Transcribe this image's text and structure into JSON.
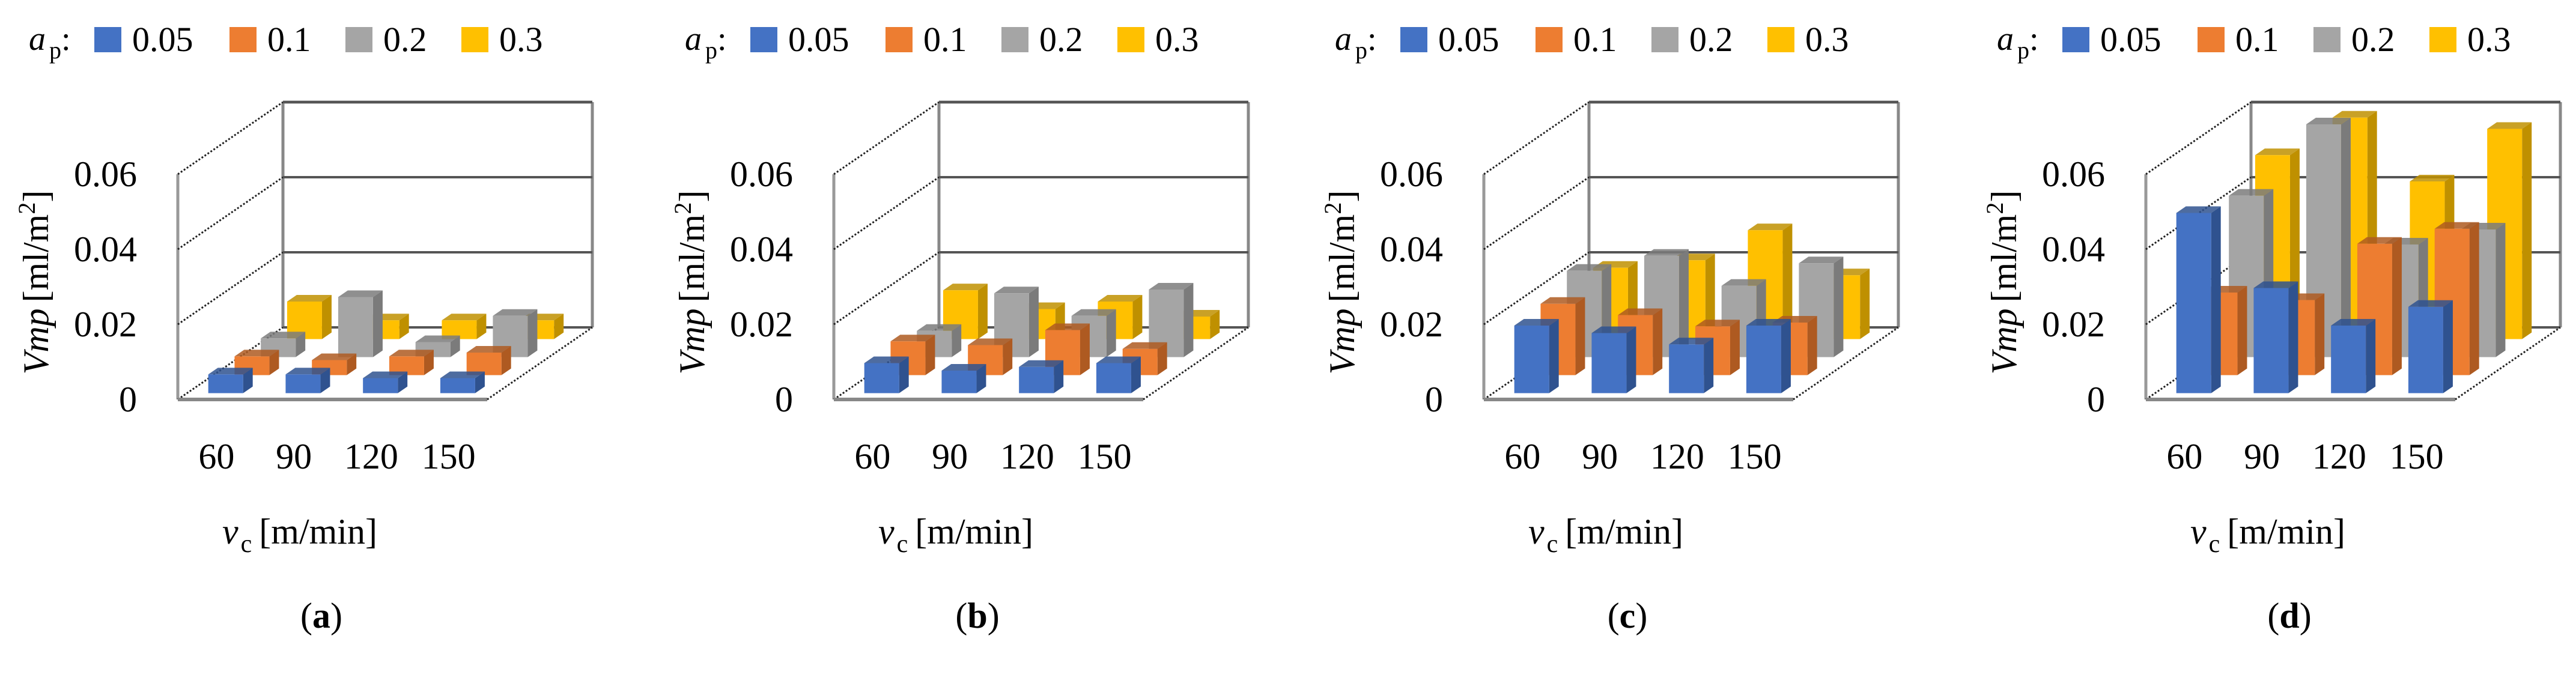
{
  "legend": {
    "symbol": "a",
    "subscript": "p",
    "colon": ":",
    "items": [
      "0.05",
      "0.1",
      "0.2",
      "0.3"
    ]
  },
  "colors": {
    "0.05": [
      "#4472C4",
      "#2F528F",
      "#5B86D4"
    ],
    "0.1": [
      "#ED7D31",
      "#AE5A21",
      "#F0955A"
    ],
    "0.2": [
      "#A5A5A5",
      "#7B7B7B",
      "#BDBDBD"
    ],
    "0.3": [
      "#FFC000",
      "#BF9000",
      "#FFD040"
    ]
  },
  "chart_data": [
    {
      "type": "bar",
      "subtype": "3d-clustered-depth",
      "caption": "a",
      "categories": [
        "60",
        "90",
        "120",
        "150"
      ],
      "xlabel": {
        "symbol": "v",
        "subscript": "c",
        "unit": "[m/min]"
      },
      "ylabel": {
        "symbol": "Vmp",
        "unit": "[ml/m",
        "sup": "2",
        "close": "]"
      },
      "yticks": [
        "0",
        "0.02",
        "0.04",
        "0.06"
      ],
      "ylim": [
        0,
        0.06
      ],
      "legend_title": "ap",
      "legend_position": "top",
      "series": [
        {
          "name": "0.05",
          "values": [
            0.005,
            0.005,
            0.004,
            0.004
          ]
        },
        {
          "name": "0.1",
          "values": [
            0.005,
            0.004,
            0.005,
            0.006
          ]
        },
        {
          "name": "0.2",
          "values": [
            0.005,
            0.016,
            0.004,
            0.011
          ]
        },
        {
          "name": "0.3",
          "values": [
            0.01,
            0.005,
            0.005,
            0.005
          ]
        }
      ]
    },
    {
      "type": "bar",
      "subtype": "3d-clustered-depth",
      "caption": "b",
      "categories": [
        "60",
        "90",
        "120",
        "150"
      ],
      "xlabel": {
        "symbol": "v",
        "subscript": "c",
        "unit": "[m/min]"
      },
      "ylabel": {
        "symbol": "Vmp",
        "unit": "[ml/m",
        "sup": "2",
        "close": "]"
      },
      "yticks": [
        "0",
        "0.02",
        "0.04",
        "0.06"
      ],
      "ylim": [
        0,
        0.06
      ],
      "legend_title": "ap",
      "legend_position": "top",
      "series": [
        {
          "name": "0.05",
          "values": [
            0.008,
            0.006,
            0.007,
            0.008
          ]
        },
        {
          "name": "0.1",
          "values": [
            0.009,
            0.008,
            0.012,
            0.007
          ]
        },
        {
          "name": "0.2",
          "values": [
            0.007,
            0.017,
            0.011,
            0.018
          ]
        },
        {
          "name": "0.3",
          "values": [
            0.013,
            0.008,
            0.01,
            0.006
          ]
        }
      ]
    },
    {
      "type": "bar",
      "subtype": "3d-clustered-depth",
      "caption": "c",
      "categories": [
        "60",
        "90",
        "120",
        "150"
      ],
      "xlabel": {
        "symbol": "v",
        "subscript": "c",
        "unit": "[m/min]"
      },
      "ylabel": {
        "symbol": "Vmp",
        "unit": "[ml/m",
        "sup": "2",
        "close": "]"
      },
      "yticks": [
        "0",
        "0.02",
        "0.04",
        "0.06"
      ],
      "ylim": [
        0,
        0.06
      ],
      "legend_title": "ap",
      "legend_position": "top",
      "series": [
        {
          "name": "0.05",
          "values": [
            0.018,
            0.016,
            0.013,
            0.018
          ]
        },
        {
          "name": "0.1",
          "values": [
            0.019,
            0.016,
            0.013,
            0.014
          ]
        },
        {
          "name": "0.2",
          "values": [
            0.023,
            0.027,
            0.019,
            0.025
          ]
        },
        {
          "name": "0.3",
          "values": [
            0.019,
            0.021,
            0.029,
            0.017
          ]
        }
      ]
    },
    {
      "type": "bar",
      "subtype": "3d-clustered-depth",
      "caption": "d",
      "categories": [
        "60",
        "90",
        "120",
        "150"
      ],
      "xlabel": {
        "symbol": "v",
        "subscript": "c",
        "unit": "[m/min]"
      },
      "ylabel": {
        "symbol": "Vmp",
        "unit": "[ml/m",
        "sup": "2",
        "close": "]"
      },
      "yticks": [
        "0",
        "0.02",
        "0.04",
        "0.06"
      ],
      "ylim": [
        0,
        0.06
      ],
      "legend_title": "ap",
      "legend_position": "top",
      "series": [
        {
          "name": "0.05",
          "values": [
            0.048,
            0.028,
            0.018,
            0.023
          ]
        },
        {
          "name": "0.1",
          "values": [
            0.022,
            0.02,
            0.035,
            0.039
          ]
        },
        {
          "name": "0.2",
          "values": [
            0.043,
            0.062,
            0.03,
            0.034
          ]
        },
        {
          "name": "0.3",
          "values": [
            0.049,
            0.059,
            0.042,
            0.056
          ]
        }
      ]
    }
  ]
}
